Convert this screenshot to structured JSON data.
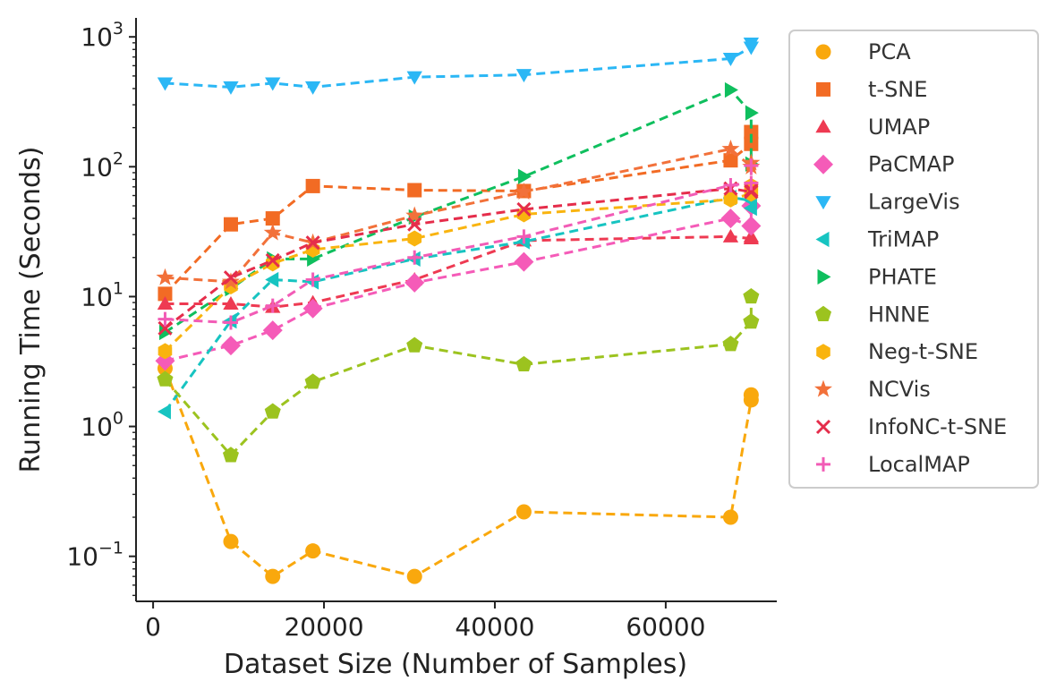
{
  "chart_data": {
    "type": "line",
    "xlabel": "Dataset Size (Number of Samples)",
    "ylabel": "Running Time (Seconds)",
    "xlim": [
      -2000,
      73000
    ],
    "xticks": [
      0,
      20000,
      40000,
      60000
    ],
    "xtick_labels": [
      "0",
      "20000",
      "40000",
      "60000"
    ],
    "yscale": "log",
    "ylim": [
      0.045,
      1400
    ],
    "yticks": [
      0.1,
      1,
      10,
      100,
      1000
    ],
    "ytick_labels": [
      {
        "base": "10",
        "exp": "−1"
      },
      {
        "base": "10",
        "exp": "0"
      },
      {
        "base": "10",
        "exp": "1"
      },
      {
        "base": "10",
        "exp": "2"
      },
      {
        "base": "10",
        "exp": "3"
      }
    ],
    "legend_position": "outside-right",
    "series": [
      {
        "name": "PCA",
        "color": "#f9a80d",
        "marker": "circle",
        "x": [
          1400,
          9100,
          14000,
          18700,
          30600,
          43400,
          67600,
          70000,
          70000
        ],
        "y": [
          2.8,
          0.13,
          0.07,
          0.11,
          0.07,
          0.22,
          0.2,
          1.6,
          1.75
        ]
      },
      {
        "name": "t-SNE",
        "color": "#f26b24",
        "marker": "square",
        "x": [
          1400,
          9100,
          14000,
          18700,
          30600,
          43400,
          67600,
          70000,
          70000
        ],
        "y": [
          10.5,
          36,
          40,
          71,
          66,
          65,
          112,
          150,
          185
        ]
      },
      {
        "name": "UMAP",
        "color": "#ee3a52",
        "marker": "triangle-up",
        "x": [
          1400,
          9100,
          14000,
          18700,
          30600,
          43400,
          67600,
          70000,
          70000
        ],
        "y": [
          8.8,
          8.8,
          8.3,
          9,
          13.5,
          27,
          29,
          28,
          29
        ]
      },
      {
        "name": "PaCMAP",
        "color": "#f55bb8",
        "marker": "diamond",
        "x": [
          1400,
          9100,
          14000,
          18700,
          30600,
          43400,
          67600,
          70000,
          70000
        ],
        "y": [
          3.2,
          4.2,
          5.5,
          8.1,
          12.8,
          18.5,
          40,
          35,
          50
        ]
      },
      {
        "name": "LargeVis",
        "color": "#2bb7f5",
        "marker": "triangle-down",
        "x": [
          1400,
          9100,
          14000,
          18700,
          30600,
          43400,
          67600,
          70000,
          70000
        ],
        "y": [
          440,
          410,
          440,
          410,
          490,
          510,
          680,
          830,
          890
        ]
      },
      {
        "name": "TriMAP",
        "color": "#17c4c1",
        "marker": "triangle-left",
        "x": [
          1400,
          9100,
          14000,
          18700,
          30600,
          43400,
          67600,
          70000,
          70000
        ],
        "y": [
          1.3,
          6.5,
          13.5,
          13,
          19.5,
          26.5,
          58,
          55,
          48
        ]
      },
      {
        "name": "PHATE",
        "color": "#0fbf5e",
        "marker": "triangle-right",
        "x": [
          1400,
          9100,
          14000,
          18700,
          30600,
          43400,
          67600,
          70000,
          70000
        ],
        "y": [
          5.3,
          11.5,
          19.5,
          19.5,
          41,
          84,
          390,
          260,
          105
        ]
      },
      {
        "name": "HNNE",
        "color": "#9cc31f",
        "marker": "pentagon",
        "x": [
          1400,
          9100,
          14000,
          18700,
          30600,
          43400,
          67600,
          70000,
          70000
        ],
        "y": [
          2.3,
          0.6,
          1.3,
          2.2,
          4.2,
          3.0,
          4.3,
          6.4,
          10
        ]
      },
      {
        "name": "Neg-t-SNE",
        "color": "#f9b40f",
        "marker": "hexagon",
        "x": [
          1400,
          9100,
          14000,
          18700,
          30600,
          43400,
          67600,
          70000,
          70000
        ],
        "y": [
          3.8,
          12,
          18,
          23,
          28,
          43,
          56,
          62,
          71
        ]
      },
      {
        "name": "NCVis",
        "color": "#f2713a",
        "marker": "star",
        "x": [
          1400,
          9100,
          14000,
          18700,
          30600,
          43400,
          67600,
          70000,
          70000
        ],
        "y": [
          14,
          13,
          31,
          26,
          42,
          64,
          137,
          100,
          107
        ]
      },
      {
        "name": "InfoNC-t-SNE",
        "color": "#e52d4b",
        "marker": "x",
        "x": [
          1400,
          9100,
          14000,
          18700,
          30600,
          43400,
          67600,
          70000,
          70000
        ],
        "y": [
          5.7,
          14,
          19,
          26,
          36,
          47,
          68,
          64,
          66
        ]
      },
      {
        "name": "LocalMAP",
        "color": "#f25cb6",
        "marker": "plus",
        "x": [
          1400,
          9100,
          14000,
          18700,
          30600,
          43400,
          67600,
          70000,
          70000
        ],
        "y": [
          6.7,
          6.3,
          8.5,
          13.5,
          20,
          29,
          72,
          75,
          102
        ]
      }
    ]
  }
}
